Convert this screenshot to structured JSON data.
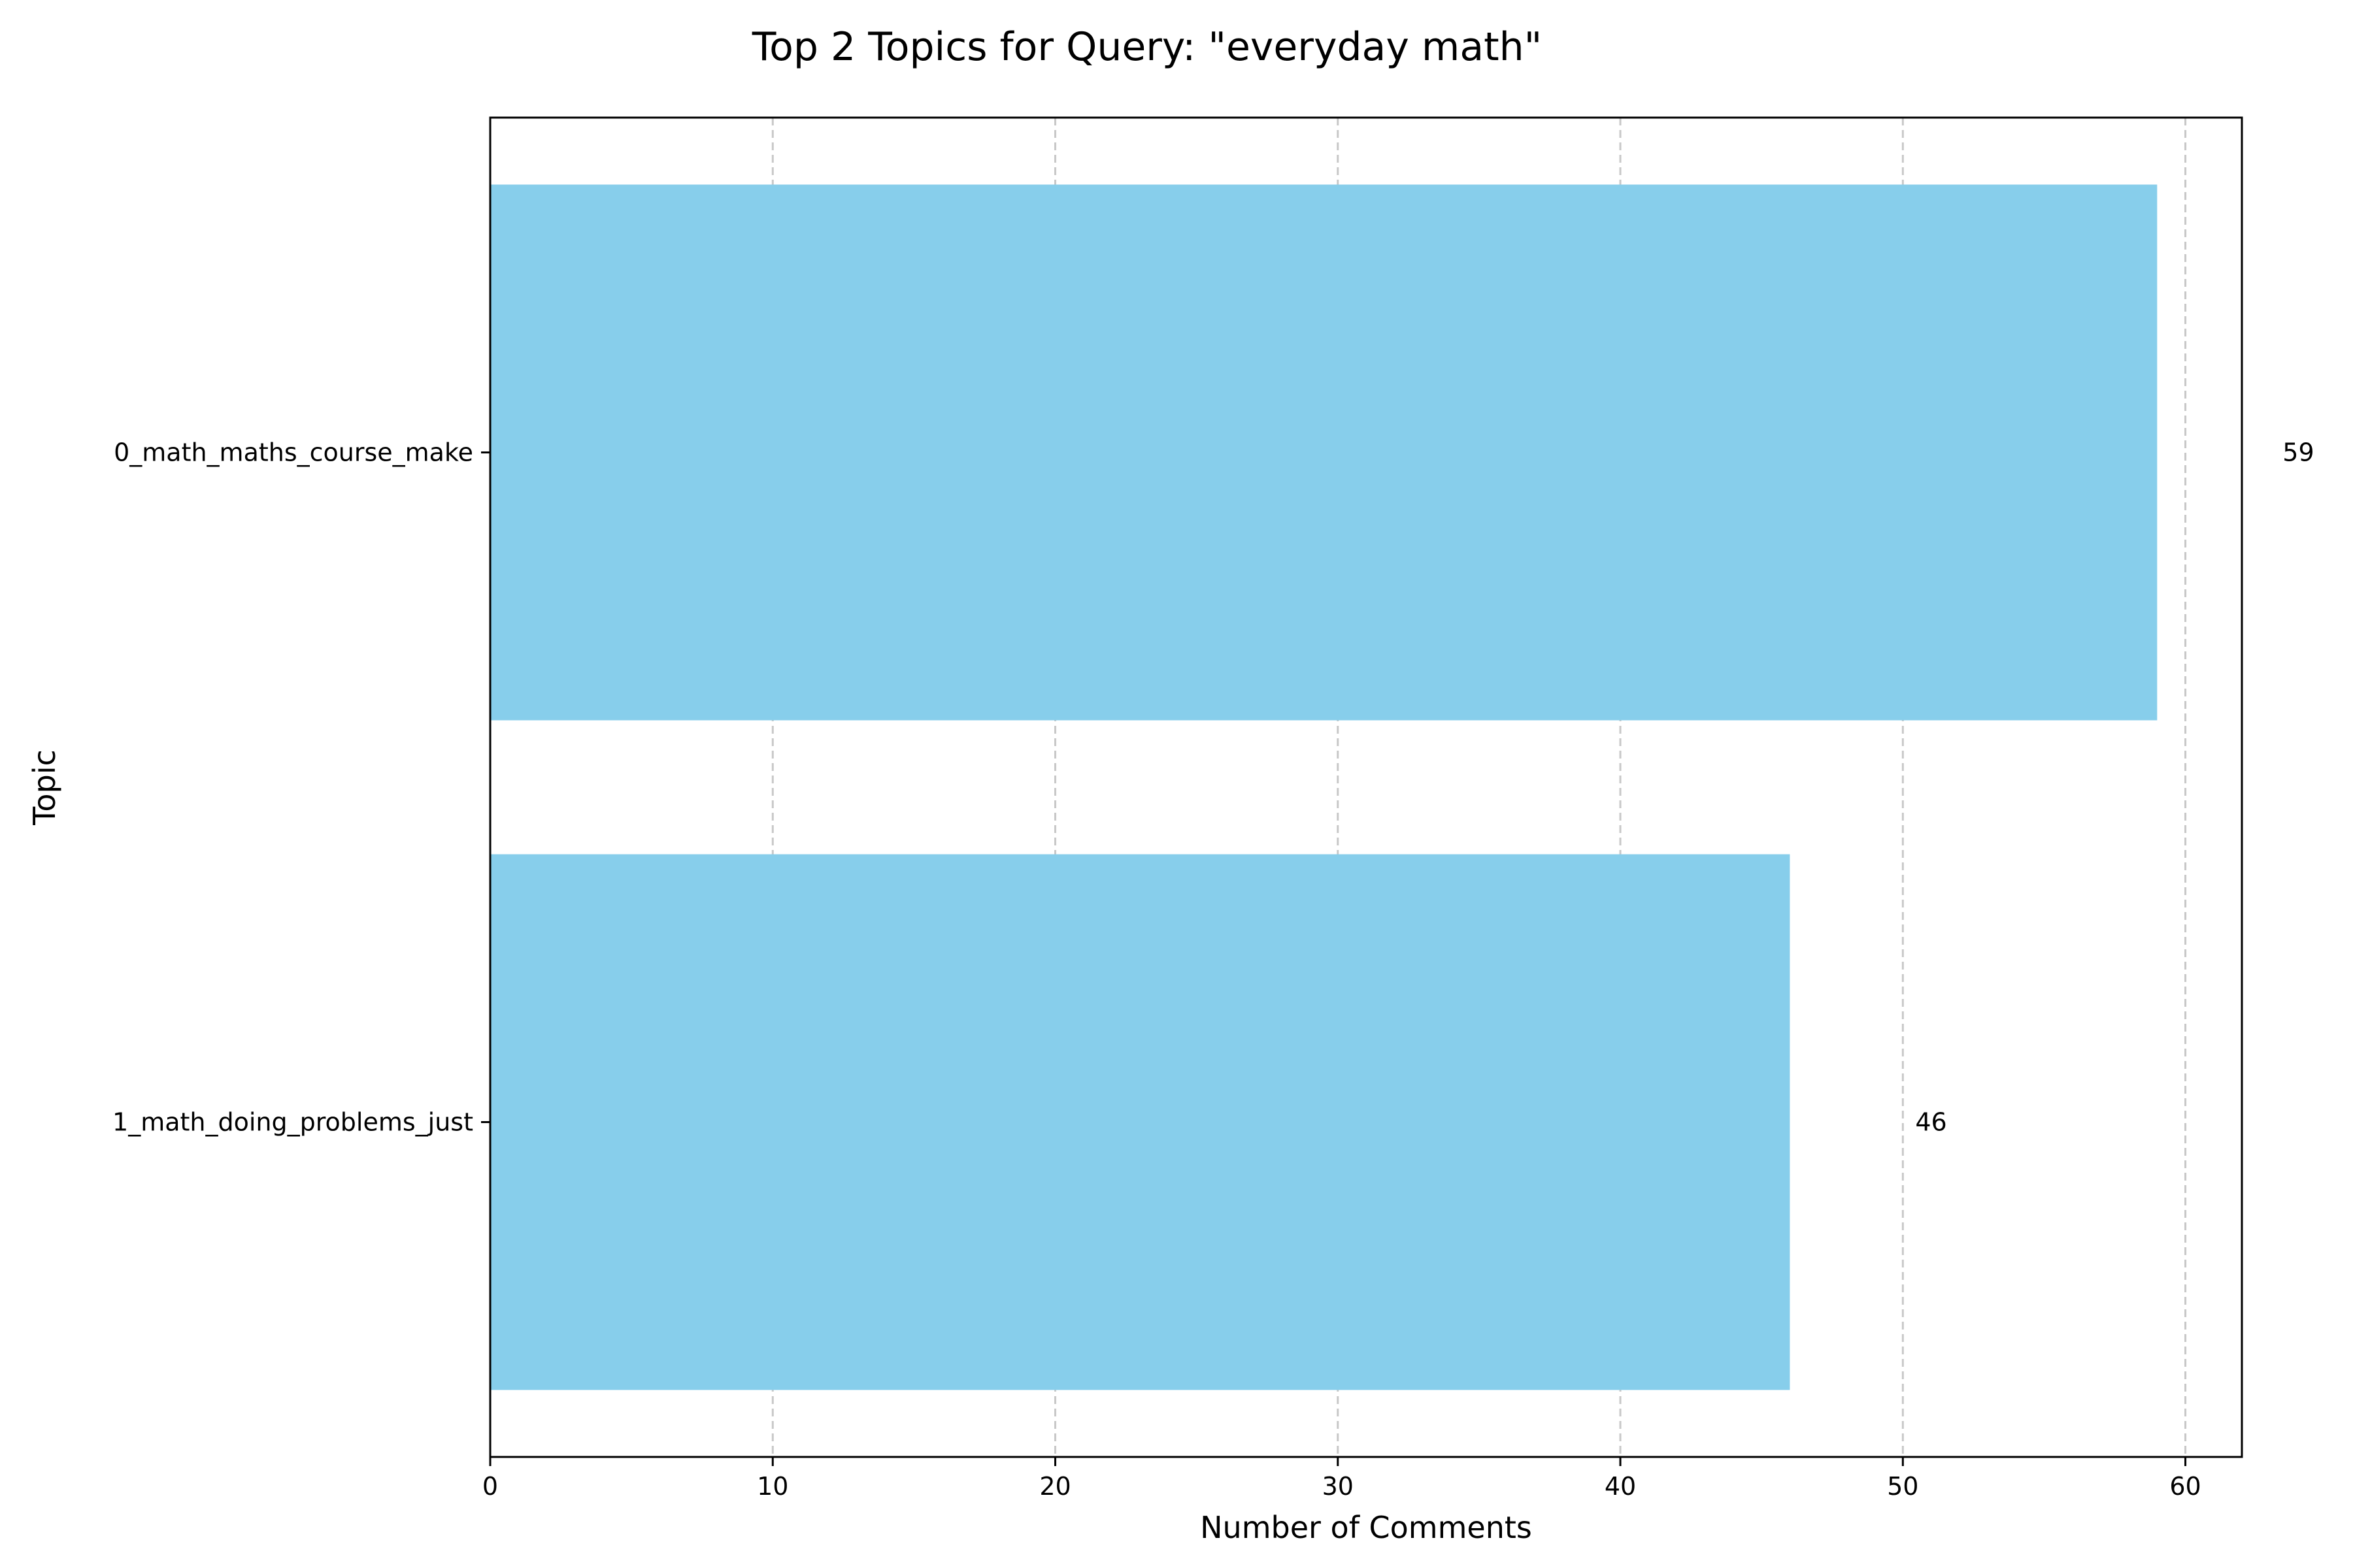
{
  "chart_data": {
    "type": "bar",
    "orientation": "horizontal",
    "title": "Top 2 Topics for Query: \"everyday math\"",
    "xlabel": "Number of Comments",
    "ylabel": "Topic",
    "categories": [
      "0_math_maths_course_make",
      "1_math_doing_problems_just"
    ],
    "values": [
      59,
      46
    ],
    "data_labels": [
      "59",
      "46"
    ],
    "xlim": [
      0,
      62
    ],
    "xticks": [
      0,
      10,
      20,
      30,
      40,
      50,
      60
    ],
    "xtick_labels": [
      "0",
      "10",
      "20",
      "30",
      "40",
      "50",
      "60"
    ],
    "grid": "x-axis, dashed",
    "bar_color": "#87ceeb",
    "grid_color": "#c8c8c8"
  }
}
